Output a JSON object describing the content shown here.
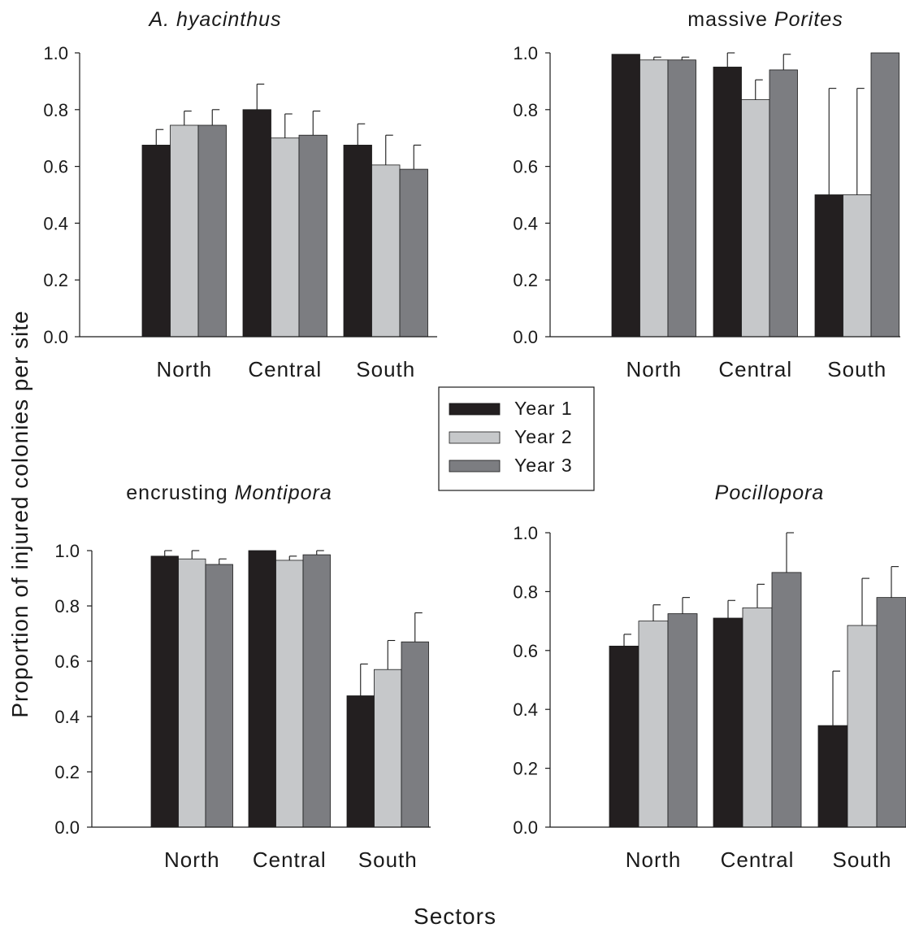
{
  "legend": {
    "items": [
      {
        "label": "Year 1",
        "color": "#231f20"
      },
      {
        "label": "Year 2",
        "color": "#c6c8ca"
      },
      {
        "label": "Year 3",
        "color": "#7c7d81"
      }
    ]
  },
  "axes": {
    "ylabel": "Proportion of injured colonies per site",
    "xlabel": "Sectors"
  },
  "chart_data": [
    {
      "type": "bar",
      "title": [
        {
          "text": "A. hyacinthus",
          "italic": true
        }
      ],
      "categories": [
        "North",
        "Central",
        "South"
      ],
      "series": [
        {
          "name": "Year 1",
          "values": [
            0.675,
            0.8,
            0.675
          ],
          "error": [
            0.055,
            0.09,
            0.075
          ]
        },
        {
          "name": "Year 2",
          "values": [
            0.745,
            0.7,
            0.605
          ],
          "error": [
            0.05,
            0.085,
            0.105
          ]
        },
        {
          "name": "Year 3",
          "values": [
            0.745,
            0.71,
            0.59
          ],
          "error": [
            0.055,
            0.085,
            0.085
          ]
        }
      ],
      "ylim": [
        0,
        1.0
      ],
      "yticks": [
        "0.0",
        "0.2",
        "0.4",
        "0.6",
        "0.8",
        "1.0"
      ]
    },
    {
      "type": "bar",
      "title": [
        {
          "text": "massive ",
          "italic": false
        },
        {
          "text": "Porites",
          "italic": true
        }
      ],
      "categories": [
        "North",
        "Central",
        "South"
      ],
      "series": [
        {
          "name": "Year 1",
          "values": [
            0.995,
            0.95,
            0.5
          ],
          "error": [
            0.0,
            0.05,
            0.375
          ]
        },
        {
          "name": "Year 2",
          "values": [
            0.975,
            0.835,
            0.5
          ],
          "error": [
            0.01,
            0.07,
            0.375
          ]
        },
        {
          "name": "Year 3",
          "values": [
            0.975,
            0.94,
            1.0
          ],
          "error": [
            0.01,
            0.055,
            0.0
          ]
        }
      ],
      "ylim": [
        0,
        1.0
      ],
      "yticks": [
        "0.0",
        "0.2",
        "0.4",
        "0.6",
        "0.8",
        "1.0"
      ]
    },
    {
      "type": "bar",
      "title": [
        {
          "text": "encrusting ",
          "italic": false
        },
        {
          "text": "Montipora",
          "italic": true
        }
      ],
      "categories": [
        "North",
        "Central",
        "South"
      ],
      "series": [
        {
          "name": "Year 1",
          "values": [
            0.98,
            1.0,
            0.475
          ],
          "error": [
            0.02,
            0.0,
            0.115
          ]
        },
        {
          "name": "Year 2",
          "values": [
            0.97,
            0.965,
            0.57
          ],
          "error": [
            0.03,
            0.015,
            0.105
          ]
        },
        {
          "name": "Year 3",
          "values": [
            0.95,
            0.985,
            0.67
          ],
          "error": [
            0.02,
            0.015,
            0.105
          ]
        }
      ],
      "ylim": [
        0,
        1.0
      ],
      "yticks": [
        "0.0",
        "0.2",
        "0.4",
        "0.6",
        "0.8",
        "1.0"
      ]
    },
    {
      "type": "bar",
      "title": [
        {
          "text": "Pocillopora",
          "italic": true
        }
      ],
      "categories": [
        "North",
        "Central",
        "South"
      ],
      "series": [
        {
          "name": "Year 1",
          "values": [
            0.615,
            0.71,
            0.345
          ],
          "error": [
            0.04,
            0.06,
            0.185
          ]
        },
        {
          "name": "Year 2",
          "values": [
            0.7,
            0.745,
            0.685
          ],
          "error": [
            0.055,
            0.08,
            0.16
          ]
        },
        {
          "name": "Year 3",
          "values": [
            0.725,
            0.865,
            0.78
          ],
          "error": [
            0.055,
            0.135,
            0.105
          ]
        }
      ],
      "ylim": [
        0,
        1.0
      ],
      "yticks": [
        "0.0",
        "0.2",
        "0.4",
        "0.6",
        "0.8",
        "1.0"
      ]
    }
  ]
}
